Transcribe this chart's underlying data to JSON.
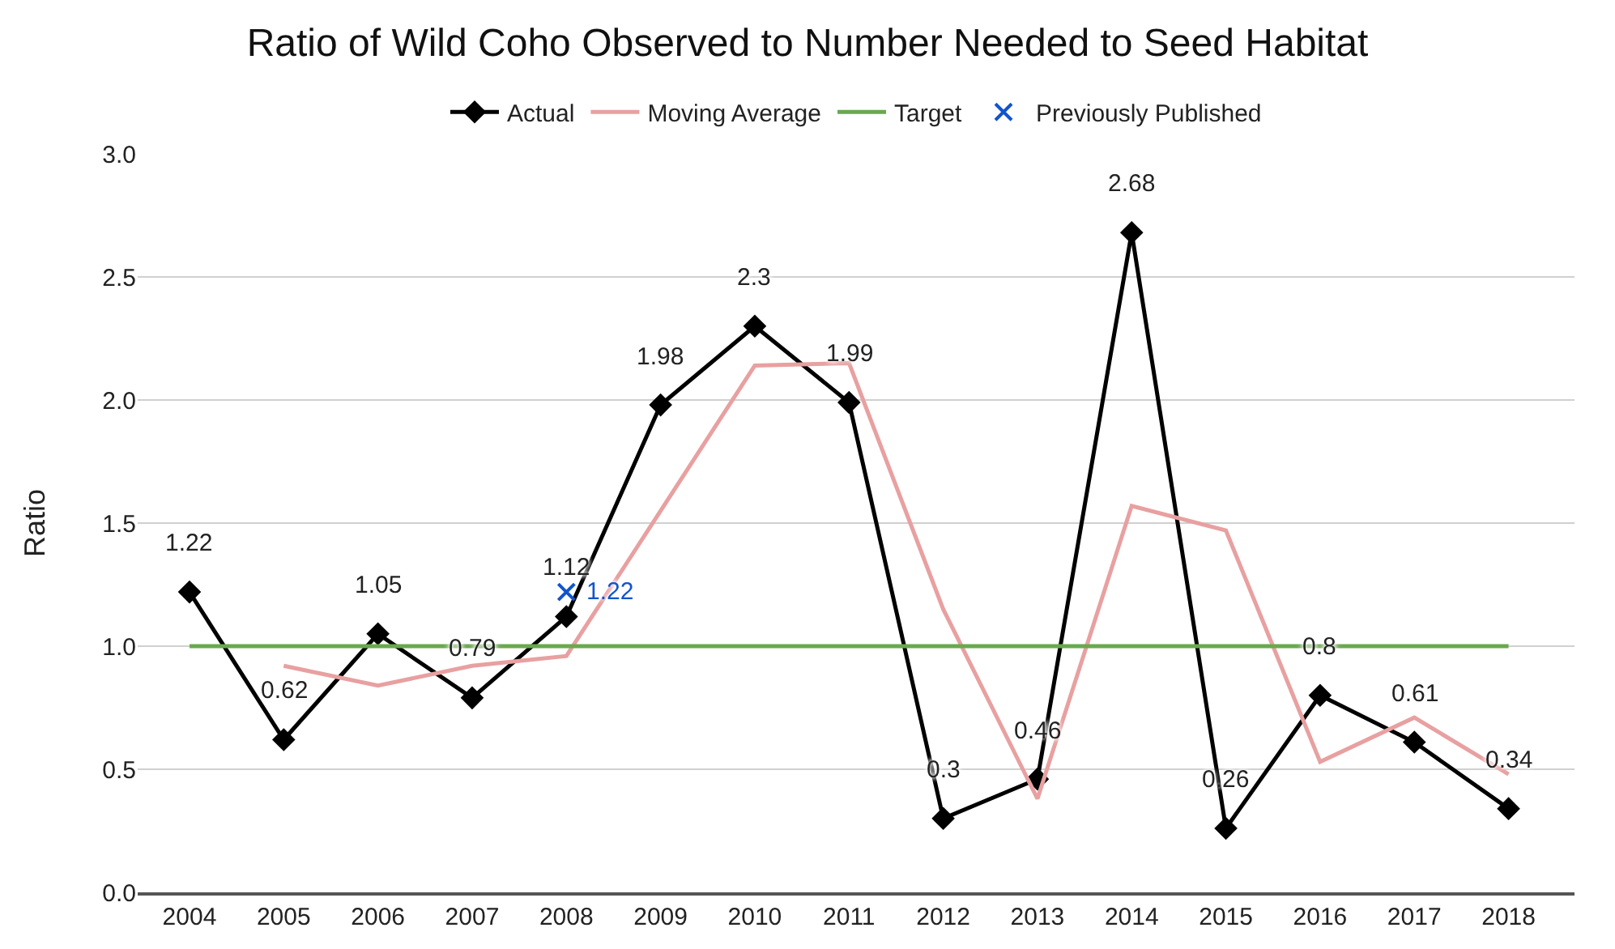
{
  "chart_data": {
    "type": "line",
    "title": "Ratio of Wild Coho Observed to Number Needed to Seed Habitat",
    "ylabel": "Ratio",
    "categories": [
      "2004",
      "2005",
      "2006",
      "2007",
      "2008",
      "2009",
      "2010",
      "2011",
      "2012",
      "2013",
      "2014",
      "2015",
      "2016",
      "2017",
      "2018"
    ],
    "series": [
      {
        "name": "Actual",
        "color": "#000000",
        "marker": "diamond",
        "values": [
          1.22,
          0.62,
          1.05,
          0.79,
          1.12,
          1.98,
          2.3,
          1.99,
          0.3,
          0.46,
          2.68,
          0.26,
          0.8,
          0.61,
          0.34
        ],
        "value_labels": [
          "1.22",
          "0.62",
          "1.05",
          "0.79",
          "1.12",
          "1.98",
          "2.3",
          "1.99",
          "0.3",
          "0.46",
          "2.68",
          "0.26",
          "0.8",
          "0.61",
          "0.34"
        ]
      },
      {
        "name": "Moving Average",
        "color": "#e8a0a0",
        "marker": "none",
        "values": [
          null,
          0.92,
          0.84,
          0.92,
          0.96,
          1.55,
          2.14,
          2.15,
          1.15,
          0.38,
          1.57,
          1.47,
          0.53,
          0.71,
          0.48
        ]
      },
      {
        "name": "Target",
        "color": "#6aa84f",
        "marker": "none",
        "values": [
          1,
          1,
          1,
          1,
          1,
          1,
          1,
          1,
          1,
          1,
          1,
          1,
          1,
          1,
          1
        ]
      },
      {
        "name": "Previously Published",
        "color": "#1155cc",
        "marker": "cross",
        "type": "scatter",
        "values": [
          null,
          null,
          null,
          null,
          1.22,
          null,
          null,
          null,
          null,
          null,
          null,
          null,
          null,
          null,
          null
        ],
        "value_labels": [
          null,
          null,
          null,
          null,
          "1.22",
          null,
          null,
          null,
          null,
          null,
          null,
          null,
          null,
          null,
          null
        ]
      }
    ],
    "ylim": [
      0,
      3
    ],
    "yticks": [
      {
        "value": 0,
        "label": "0.0"
      },
      {
        "value": 0.5,
        "label": "0.5"
      },
      {
        "value": 1,
        "label": "1.0"
      },
      {
        "value": 1.5,
        "label": "1.5"
      },
      {
        "value": 2,
        "label": "2.0"
      },
      {
        "value": 2.5,
        "label": "2.5"
      },
      {
        "value": 3,
        "label": "3.0"
      }
    ],
    "grid": "y",
    "legend": "top"
  }
}
